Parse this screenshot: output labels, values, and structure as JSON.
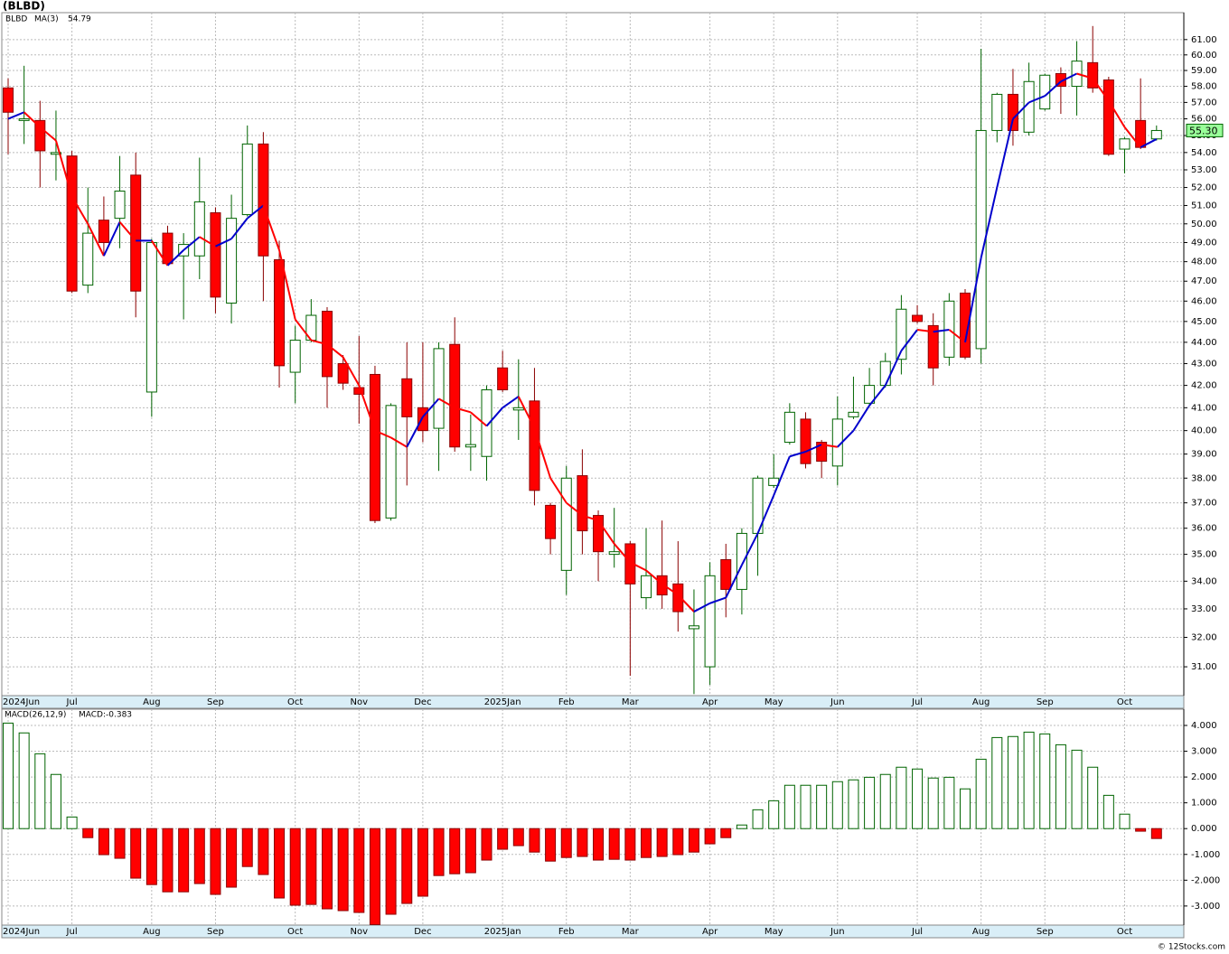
{
  "title": "(BLBD)",
  "copyright": "© 12Stocks.com",
  "chart_data": [
    {
      "type": "candlestick",
      "legend": "BLBD",
      "legend_color": "#008000",
      "categories": [
        "2024Jun",
        null,
        null,
        null,
        "Jul",
        null,
        null,
        null,
        null,
        "Aug",
        null,
        null,
        null,
        "Sep",
        null,
        null,
        null,
        null,
        "Oct",
        null,
        null,
        null,
        "Nov",
        null,
        null,
        null,
        "Dec",
        null,
        null,
        null,
        null,
        "2025Jan",
        null,
        null,
        null,
        "Feb",
        null,
        null,
        null,
        "Mar",
        null,
        null,
        null,
        null,
        "Apr",
        null,
        null,
        null,
        "May",
        null,
        null,
        null,
        "Jun",
        null,
        null,
        null,
        null,
        "Jul",
        null,
        null,
        null,
        "Aug",
        null,
        null,
        null,
        "Sep",
        null,
        null,
        null,
        null,
        "Oct",
        null,
        null
      ],
      "open": [
        57.9,
        55.9,
        55.9,
        53.9,
        53.8,
        46.8,
        50.2,
        50.3,
        52.7,
        41.7,
        49.5,
        48.3,
        48.3,
        50.6,
        45.9,
        50.5,
        54.5,
        48.1,
        42.6,
        44.1,
        45.5,
        43.0,
        41.9,
        42.5,
        36.4,
        42.3,
        41.0,
        40.1,
        43.9,
        39.3,
        38.9,
        42.8,
        40.9,
        41.3,
        36.9,
        34.4,
        38.1,
        36.5,
        35.0,
        35.4,
        33.4,
        34.2,
        33.9,
        32.3,
        31.0,
        34.8,
        33.7,
        35.8,
        37.7,
        39.5,
        40.5,
        39.5,
        38.5,
        40.6,
        41.2,
        42.0,
        43.2,
        45.3,
        44.8,
        43.3,
        46.4,
        43.7,
        55.3,
        57.5,
        55.2,
        56.6,
        58.8,
        58.0,
        59.5,
        58.4,
        54.2,
        55.9,
        54.8
      ],
      "high": [
        58.5,
        59.3,
        57.1,
        56.5,
        54.1,
        52.0,
        51.5,
        53.8,
        54.0,
        49.2,
        49.9,
        49.5,
        53.7,
        50.9,
        51.6,
        55.6,
        55.2,
        49.1,
        44.8,
        46.1,
        45.7,
        43.4,
        44.3,
        42.9,
        41.2,
        44.0,
        44.0,
        44.0,
        45.2,
        40.7,
        42.0,
        43.6,
        43.2,
        42.8,
        37.0,
        38.5,
        39.2,
        36.7,
        36.8,
        35.5,
        36.0,
        36.3,
        35.5,
        33.7,
        34.7,
        35.4,
        36.0,
        38.1,
        39.0,
        41.2,
        40.8,
        39.6,
        41.5,
        42.4,
        42.8,
        43.5,
        46.3,
        45.8,
        45.4,
        46.4,
        46.6,
        60.4,
        57.6,
        59.1,
        59.5,
        58.8,
        59.2,
        60.9,
        61.9,
        58.6,
        54.9,
        58.5,
        55.6
      ],
      "low": [
        53.9,
        54.5,
        52.0,
        52.4,
        46.4,
        46.4,
        48.4,
        48.7,
        45.2,
        40.6,
        47.8,
        45.1,
        47.1,
        45.4,
        44.9,
        50.4,
        46.0,
        41.9,
        41.2,
        44.0,
        41.0,
        41.8,
        40.3,
        36.2,
        36.3,
        37.7,
        39.5,
        38.3,
        39.1,
        38.3,
        37.9,
        41.7,
        39.6,
        36.9,
        35.0,
        33.5,
        35.0,
        34.0,
        34.5,
        30.7,
        33.0,
        33.0,
        32.2,
        30.1,
        30.4,
        32.7,
        32.8,
        34.2,
        37.6,
        39.4,
        38.4,
        38.0,
        37.7,
        40.5,
        41.1,
        41.9,
        42.5,
        44.9,
        42.0,
        42.9,
        43.2,
        43.0,
        54.6,
        54.4,
        55.0,
        56.5,
        56.3,
        56.2,
        57.6,
        53.8,
        52.8,
        54.2,
        54.7
      ],
      "close": [
        56.4,
        56.0,
        54.1,
        54.0,
        46.5,
        49.5,
        49.0,
        51.8,
        46.5,
        49.0,
        47.9,
        48.9,
        51.2,
        46.2,
        50.3,
        54.5,
        48.3,
        42.9,
        44.1,
        45.3,
        42.4,
        42.1,
        41.6,
        36.3,
        41.1,
        40.6,
        40.0,
        43.7,
        39.3,
        39.4,
        41.8,
        41.8,
        41.0,
        37.5,
        35.6,
        38.0,
        35.9,
        35.1,
        35.1,
        33.9,
        34.2,
        33.5,
        32.9,
        32.4,
        34.2,
        33.7,
        35.8,
        38.0,
        38.0,
        40.8,
        38.6,
        38.7,
        40.5,
        40.8,
        42.0,
        43.1,
        45.6,
        45.0,
        42.8,
        46.0,
        43.3,
        55.3,
        57.5,
        55.3,
        58.3,
        58.7,
        58.0,
        59.6,
        57.9,
        53.9,
        54.8,
        54.3,
        55.3
      ],
      "up_color": "#ffffff",
      "up_edge": "#006400",
      "down_color": "#ff0000",
      "down_edge": "#8b0000",
      "last_label": "55.30",
      "last_label_color": "#99ff99",
      "overlay": {
        "name": "MA(3)",
        "value_label": "54.79",
        "color": "#0000cc",
        "up_color": "#0000cc",
        "down_color": "#ff0000",
        "values": [
          56.0,
          56.4,
          55.5,
          54.7,
          51.5,
          50.0,
          48.3,
          50.1,
          49.1,
          49.1,
          47.8,
          48.6,
          49.3,
          48.8,
          49.2,
          50.3,
          51.0,
          48.6,
          45.1,
          44.1,
          43.9,
          43.3,
          42.0,
          40.0,
          39.7,
          39.3,
          40.6,
          41.4,
          41.0,
          40.8,
          40.2,
          41.0,
          41.5,
          40.1,
          38.0,
          37.0,
          36.5,
          36.3,
          35.4,
          34.7,
          34.4,
          33.9,
          33.5,
          32.9,
          33.2,
          33.4,
          34.6,
          35.8,
          37.3,
          38.9,
          39.1,
          39.4,
          39.3,
          40.0,
          41.1,
          42.0,
          43.6,
          44.6,
          44.5,
          44.6,
          44.0,
          48.2,
          52.0,
          56.0,
          57.0,
          57.4,
          58.3,
          58.8,
          58.5,
          57.1,
          55.5,
          54.3,
          54.79
        ]
      },
      "ylim": [
        30.05,
        62.8
      ],
      "log_scale": true,
      "grid": true,
      "yticks": [
        {
          "value": 31,
          "label": "31.00"
        },
        {
          "value": 32,
          "label": "32.00"
        },
        {
          "value": 33,
          "label": "33.00"
        },
        {
          "value": 34,
          "label": "34.00"
        },
        {
          "value": 35,
          "label": "35.00"
        },
        {
          "value": 36,
          "label": "36.00"
        },
        {
          "value": 37,
          "label": "37.00"
        },
        {
          "value": 38,
          "label": "38.00"
        },
        {
          "value": 39,
          "label": "39.00"
        },
        {
          "value": 40,
          "label": "40.00"
        },
        {
          "value": 41,
          "label": "41.00"
        },
        {
          "value": 42,
          "label": "42.00"
        },
        {
          "value": 43,
          "label": "43.00"
        },
        {
          "value": 44,
          "label": "44.00"
        },
        {
          "value": 45,
          "label": "45.00"
        },
        {
          "value": 46,
          "label": "46.00"
        },
        {
          "value": 47,
          "label": "47.00"
        },
        {
          "value": 48,
          "label": "48.00"
        },
        {
          "value": 49,
          "label": "49.00"
        },
        {
          "value": 50,
          "label": "50.00"
        },
        {
          "value": 51,
          "label": "51.00"
        },
        {
          "value": 52,
          "label": "52.00"
        },
        {
          "value": 53,
          "label": "53.00"
        },
        {
          "value": 54,
          "label": "54.00"
        },
        {
          "value": 55,
          "label": "55.00"
        },
        {
          "value": 56,
          "label": "56.00"
        },
        {
          "value": 57,
          "label": "57.00"
        },
        {
          "value": 58,
          "label": "58.00"
        },
        {
          "value": 59,
          "label": "59.00"
        },
        {
          "value": 60,
          "label": "60.00"
        },
        {
          "value": 61,
          "label": "61.00"
        }
      ]
    },
    {
      "type": "bar",
      "legend": "MACD(26,12,9)",
      "legend_value": "MACD:-0.383",
      "legend_value_color": "#0000cc",
      "categories": [
        "2024Jun",
        null,
        null,
        null,
        "Jul",
        null,
        null,
        null,
        null,
        "Aug",
        null,
        null,
        null,
        "Sep",
        null,
        null,
        null,
        null,
        "Oct",
        null,
        null,
        null,
        "Nov",
        null,
        null,
        null,
        "Dec",
        null,
        null,
        null,
        null,
        "2025Jan",
        null,
        null,
        null,
        "Feb",
        null,
        null,
        null,
        "Mar",
        null,
        null,
        null,
        null,
        "Apr",
        null,
        null,
        null,
        "May",
        null,
        null,
        null,
        "Jun",
        null,
        null,
        null,
        null,
        "Jul",
        null,
        null,
        null,
        "Aug",
        null,
        null,
        null,
        "Sep",
        null,
        null,
        null,
        null,
        "Oct",
        null,
        null
      ],
      "values": [
        4.09,
        3.71,
        2.9,
        2.1,
        0.45,
        -0.35,
        -1.01,
        -1.15,
        -1.92,
        -2.17,
        -2.45,
        -2.45,
        -2.13,
        -2.55,
        -2.27,
        -1.47,
        -1.78,
        -2.69,
        -2.97,
        -2.94,
        -3.11,
        -3.18,
        -3.25,
        -3.72,
        -3.32,
        -2.9,
        -2.62,
        -1.82,
        -1.75,
        -1.71,
        -1.22,
        -0.8,
        -0.66,
        -0.91,
        -1.26,
        -1.12,
        -1.08,
        -1.22,
        -1.19,
        -1.22,
        -1.12,
        -1.08,
        -1.01,
        -0.91,
        -0.59,
        -0.35,
        0.14,
        0.73,
        1.08,
        1.68,
        1.68,
        1.68,
        1.82,
        1.89,
        1.99,
        2.1,
        2.38,
        2.31,
        1.96,
        1.99,
        1.54,
        2.69,
        3.53,
        3.57,
        3.74,
        3.67,
        3.25,
        3.04,
        2.38,
        1.29,
        0.56,
        -0.1,
        -0.383
      ],
      "pos_color": "#ffffff",
      "pos_edge": "#006400",
      "neg_color": "#ff0000",
      "neg_edge": "#8b0000",
      "ylim": [
        -3.74,
        4.63
      ],
      "log_scale": false,
      "grid": true,
      "yticks": [
        {
          "value": -3,
          "label": "-3.000"
        },
        {
          "value": -2,
          "label": "-2.000"
        },
        {
          "value": -1,
          "label": "-1.000"
        },
        {
          "value": 0,
          "label": "0.000"
        },
        {
          "value": 1,
          "label": "1.000"
        },
        {
          "value": 2,
          "label": "2.000"
        },
        {
          "value": 3,
          "label": "3.000"
        },
        {
          "value": 4,
          "label": "4.000"
        }
      ]
    }
  ]
}
